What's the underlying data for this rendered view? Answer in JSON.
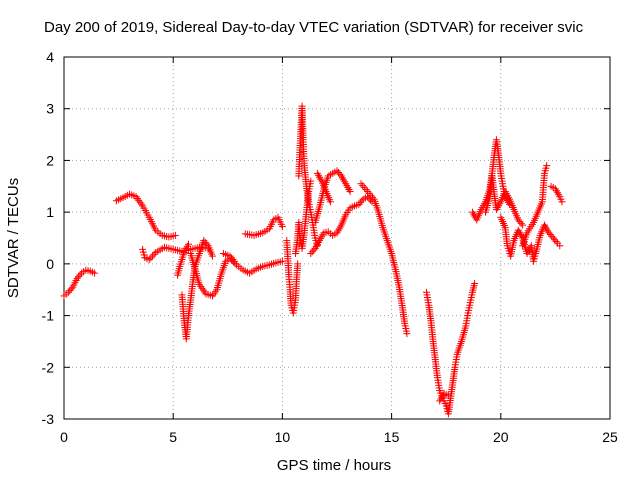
{
  "chart_data": {
    "type": "scatter",
    "title": "Day 200 of 2019, Sidereal Day-to-day VTEC variation (SDTVAR) for receiver svic",
    "xlabel": "GPS time / hours",
    "ylabel": "SDTVAR / TECUs",
    "xlim": [
      0,
      25
    ],
    "ylim": [
      -3,
      4
    ],
    "xticks": [
      0,
      5,
      10,
      15,
      20,
      25
    ],
    "yticks": [
      -3,
      -2,
      -1,
      0,
      1,
      2,
      3,
      4
    ],
    "grid": true,
    "marker": "+",
    "color": "#ff0000",
    "series": [
      {
        "name": "SDTVAR",
        "segments": [
          [
            [
              0.0,
              -0.62
            ],
            [
              0.2,
              -0.55
            ],
            [
              0.4,
              -0.45
            ],
            [
              0.6,
              -0.28
            ],
            [
              0.8,
              -0.18
            ],
            [
              1.0,
              -0.12
            ],
            [
              1.2,
              -0.14
            ],
            [
              1.4,
              -0.18
            ]
          ],
          [
            [
              2.4,
              1.22
            ],
            [
              2.7,
              1.28
            ],
            [
              3.0,
              1.35
            ],
            [
              3.3,
              1.3
            ],
            [
              3.6,
              1.12
            ],
            [
              3.9,
              0.9
            ],
            [
              4.2,
              0.65
            ],
            [
              4.5,
              0.55
            ],
            [
              4.8,
              0.52
            ],
            [
              5.1,
              0.55
            ]
          ],
          [
            [
              3.6,
              0.28
            ],
            [
              3.7,
              0.12
            ],
            [
              3.9,
              0.08
            ],
            [
              4.2,
              0.22
            ],
            [
              4.6,
              0.32
            ],
            [
              5.0,
              0.28
            ],
            [
              5.4,
              0.24
            ],
            [
              5.8,
              0.28
            ],
            [
              6.2,
              0.32
            ],
            [
              6.6,
              0.3
            ]
          ],
          [
            [
              5.2,
              -0.22
            ],
            [
              5.3,
              -0.05
            ],
            [
              5.5,
              0.22
            ],
            [
              5.7,
              0.38
            ]
          ],
          [
            [
              5.4,
              -0.6
            ],
            [
              5.5,
              -1.1
            ],
            [
              5.6,
              -1.45
            ],
            [
              5.7,
              -1.0
            ],
            [
              5.8,
              -0.7
            ],
            [
              5.9,
              -0.35
            ],
            [
              6.0,
              -0.05
            ],
            [
              6.2,
              0.2
            ],
            [
              6.4,
              0.45
            ],
            [
              6.6,
              0.35
            ],
            [
              6.8,
              0.15
            ]
          ],
          [
            [
              5.8,
              0.2
            ],
            [
              6.0,
              -0.1
            ],
            [
              6.2,
              -0.4
            ],
            [
              6.5,
              -0.58
            ],
            [
              6.8,
              -0.62
            ],
            [
              7.0,
              -0.5
            ],
            [
              7.2,
              -0.2
            ],
            [
              7.4,
              0.05
            ],
            [
              7.6,
              0.1
            ],
            [
              7.9,
              -0.02
            ],
            [
              8.2,
              -0.12
            ],
            [
              8.5,
              -0.18
            ],
            [
              8.8,
              -0.1
            ],
            [
              9.1,
              -0.05
            ],
            [
              9.4,
              -0.02
            ],
            [
              9.7,
              0.02
            ],
            [
              10.0,
              0.05
            ]
          ],
          [
            [
              7.3,
              0.2
            ],
            [
              7.6,
              0.15
            ],
            [
              7.8,
              0.05
            ]
          ],
          [
            [
              8.3,
              0.58
            ],
            [
              8.7,
              0.55
            ],
            [
              9.1,
              0.6
            ],
            [
              9.4,
              0.68
            ],
            [
              9.6,
              0.85
            ],
            [
              9.8,
              0.9
            ],
            [
              10.0,
              0.72
            ]
          ],
          [
            [
              10.2,
              0.45
            ],
            [
              10.25,
              0.1
            ],
            [
              10.3,
              -0.25
            ],
            [
              10.35,
              -0.5
            ],
            [
              10.4,
              -0.8
            ],
            [
              10.5,
              -0.95
            ],
            [
              10.6,
              -0.7
            ],
            [
              10.65,
              -0.3
            ],
            [
              10.7,
              0.0
            ]
          ],
          [
            [
              10.6,
              0.2
            ],
            [
              10.7,
              0.5
            ],
            [
              10.75,
              0.8
            ],
            [
              10.8,
              0.5
            ],
            [
              10.9,
              0.3
            ],
            [
              11.0,
              0.6
            ],
            [
              11.1,
              1.0
            ],
            [
              11.2,
              1.4
            ],
            [
              11.3,
              1.6
            ]
          ],
          [
            [
              10.75,
              1.7
            ],
            [
              10.8,
              2.2
            ],
            [
              10.85,
              2.6
            ],
            [
              10.9,
              3.05
            ],
            [
              10.95,
              2.4
            ],
            [
              11.0,
              1.9
            ],
            [
              11.1,
              1.5
            ],
            [
              11.2,
              1.2
            ],
            [
              11.3,
              1.0
            ],
            [
              11.4,
              0.75
            ],
            [
              11.5,
              0.5
            ],
            [
              11.6,
              0.35
            ]
          ],
          [
            [
              11.3,
              0.2
            ],
            [
              11.5,
              0.3
            ],
            [
              11.7,
              0.45
            ],
            [
              11.9,
              0.6
            ],
            [
              12.1,
              0.62
            ],
            [
              12.3,
              0.55
            ],
            [
              12.5,
              0.6
            ],
            [
              12.7,
              0.75
            ],
            [
              12.9,
              0.95
            ],
            [
              13.1,
              1.08
            ],
            [
              13.3,
              1.12
            ],
            [
              13.5,
              1.15
            ],
            [
              13.7,
              1.25
            ],
            [
              13.9,
              1.3
            ],
            [
              14.1,
              1.2
            ]
          ],
          [
            [
              11.5,
              0.8
            ],
            [
              11.7,
              1.1
            ],
            [
              11.9,
              1.45
            ],
            [
              12.1,
              1.7
            ],
            [
              12.3,
              1.75
            ],
            [
              12.5,
              1.8
            ],
            [
              12.7,
              1.7
            ],
            [
              12.9,
              1.55
            ],
            [
              13.1,
              1.4
            ]
          ],
          [
            [
              11.6,
              1.75
            ],
            [
              11.8,
              1.6
            ],
            [
              12.0,
              1.4
            ],
            [
              12.2,
              1.2
            ]
          ],
          [
            [
              13.6,
              1.55
            ],
            [
              13.9,
              1.4
            ],
            [
              14.2,
              1.25
            ],
            [
              14.4,
              1.0
            ],
            [
              14.6,
              0.7
            ],
            [
              14.8,
              0.45
            ],
            [
              15.0,
              0.2
            ],
            [
              15.2,
              -0.15
            ],
            [
              15.35,
              -0.45
            ],
            [
              15.5,
              -0.85
            ],
            [
              15.6,
              -1.15
            ],
            [
              15.7,
              -1.35
            ]
          ],
          [
            [
              16.6,
              -0.55
            ],
            [
              16.7,
              -0.8
            ],
            [
              16.8,
              -1.1
            ],
            [
              16.9,
              -1.5
            ],
            [
              17.0,
              -1.85
            ],
            [
              17.1,
              -2.2
            ],
            [
              17.2,
              -2.45
            ],
            [
              17.35,
              -2.6
            ],
            [
              17.5,
              -2.75
            ],
            [
              17.6,
              -2.9
            ],
            [
              17.7,
              -2.6
            ],
            [
              17.8,
              -2.3
            ],
            [
              17.9,
              -2.0
            ],
            [
              18.0,
              -1.75
            ],
            [
              18.2,
              -1.5
            ],
            [
              18.4,
              -1.2
            ],
            [
              18.5,
              -0.95
            ],
            [
              18.6,
              -0.75
            ],
            [
              18.7,
              -0.55
            ],
            [
              18.8,
              -0.38
            ]
          ],
          [
            [
              17.2,
              -2.65
            ],
            [
              17.4,
              -2.5
            ],
            [
              17.6,
              -2.55
            ]
          ],
          [
            [
              18.7,
              1.0
            ],
            [
              18.9,
              0.85
            ],
            [
              19.1,
              1.05
            ],
            [
              19.3,
              1.2
            ],
            [
              19.5,
              1.45
            ],
            [
              19.6,
              1.75
            ],
            [
              19.7,
              2.1
            ],
            [
              19.8,
              2.4
            ],
            [
              19.9,
              2.1
            ],
            [
              20.0,
              1.75
            ],
            [
              20.1,
              1.5
            ],
            [
              20.2,
              1.3
            ],
            [
              20.4,
              1.15
            ]
          ],
          [
            [
              19.3,
              1.0
            ],
            [
              19.5,
              1.3
            ],
            [
              19.6,
              1.7
            ],
            [
              19.7,
              1.35
            ],
            [
              19.8,
              1.05
            ],
            [
              20.0,
              1.2
            ],
            [
              20.2,
              1.4
            ],
            [
              20.4,
              1.25
            ],
            [
              20.6,
              1.05
            ],
            [
              20.8,
              0.85
            ],
            [
              21.0,
              0.75
            ]
          ],
          [
            [
              20.0,
              0.9
            ],
            [
              20.2,
              0.7
            ],
            [
              20.3,
              0.35
            ],
            [
              20.45,
              0.15
            ],
            [
              20.6,
              0.45
            ],
            [
              20.8,
              0.65
            ],
            [
              21.0,
              0.5
            ],
            [
              21.2,
              0.2
            ],
            [
              21.4,
              0.35
            ],
            [
              21.5,
              0.05
            ],
            [
              21.6,
              0.2
            ],
            [
              21.8,
              0.55
            ],
            [
              22.0,
              0.75
            ],
            [
              22.2,
              0.6
            ],
            [
              22.4,
              0.5
            ],
            [
              22.6,
              0.4
            ],
            [
              22.7,
              0.35
            ]
          ],
          [
            [
              21.0,
              0.35
            ],
            [
              21.2,
              0.6
            ],
            [
              21.5,
              0.8
            ],
            [
              21.7,
              1.0
            ],
            [
              21.9,
              1.2
            ],
            [
              22.0,
              1.75
            ],
            [
              22.1,
              1.9
            ]
          ],
          [
            [
              22.3,
              1.5
            ],
            [
              22.5,
              1.45
            ],
            [
              22.7,
              1.3
            ],
            [
              22.8,
              1.2
            ]
          ]
        ]
      }
    ]
  }
}
